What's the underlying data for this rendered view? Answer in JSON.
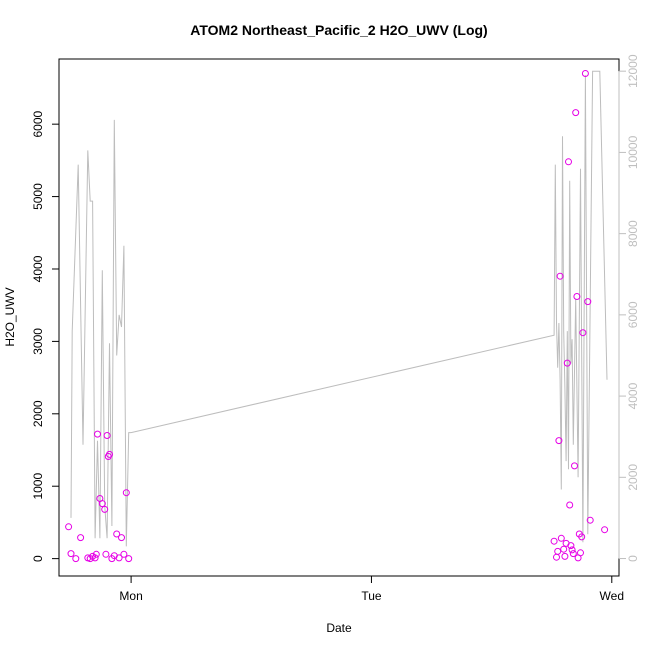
{
  "chart_data": {
    "type": "scatter",
    "title": "ATOM2 Northeast_Pacific_2 H2O_UWV (Log)",
    "xlabel": "Date",
    "ylabel": "H2O_UWV",
    "x_ticks": [
      "Mon",
      "Tue",
      "Wed"
    ],
    "y_ticks": [
      0,
      1000,
      2000,
      3000,
      4000,
      5000,
      6000
    ],
    "y_right_ticks": [
      0,
      2000,
      4000,
      6000,
      8000,
      10000,
      12000
    ],
    "x_range_days": [
      -0.3,
      2.03
    ],
    "ylim": [
      -240,
      6900
    ],
    "y_right_lim": [
      -430,
      12300
    ],
    "colors": {
      "points": "#e600e6",
      "line": "#bdbdbd",
      "right_axis": "#bfbfbf"
    },
    "series": [
      {
        "kind": "points",
        "axis": "left",
        "x": [
          -0.26,
          -0.25,
          -0.23,
          -0.21,
          -0.18,
          -0.17,
          -0.16,
          -0.15,
          -0.145,
          -0.14,
          -0.13,
          -0.12,
          -0.11,
          -0.105,
          -0.1,
          -0.095,
          -0.09,
          -0.08,
          -0.07,
          -0.06,
          -0.05,
          -0.04,
          -0.03,
          -0.02,
          -0.01,
          1.76,
          1.77,
          1.775,
          1.78,
          1.785,
          1.79,
          1.8,
          1.805,
          1.81,
          1.815,
          1.82,
          1.825,
          1.83,
          1.835,
          1.84,
          1.845,
          1.85,
          1.855,
          1.86,
          1.865,
          1.87,
          1.875,
          1.88,
          1.89,
          1.9,
          1.91,
          1.97
        ],
        "y": [
          440,
          70,
          0,
          290,
          10,
          0,
          30,
          10,
          60,
          1720,
          830,
          760,
          680,
          60,
          1700,
          1410,
          1440,
          0,
          40,
          340,
          10,
          290,
          60,
          910,
          0,
          240,
          20,
          100,
          1630,
          3900,
          280,
          130,
          30,
          210,
          2700,
          5480,
          740,
          180,
          120,
          70,
          1280,
          6160,
          3620,
          10,
          340,
          80,
          300,
          3120,
          6700,
          3550,
          530,
          400
        ]
      },
      {
        "kind": "line",
        "axis": "right",
        "x": [
          -0.25,
          -0.245,
          -0.22,
          -0.2,
          -0.18,
          -0.17,
          -0.16,
          -0.15,
          -0.14,
          -0.13,
          -0.12,
          -0.11,
          -0.1,
          -0.09,
          -0.08,
          -0.07,
          -0.06,
          -0.05,
          -0.04,
          -0.03,
          -0.02,
          -0.01,
          0.0,
          1.76,
          1.765,
          1.77,
          1.775,
          1.78,
          1.785,
          1.79,
          1.795,
          1.8,
          1.805,
          1.81,
          1.815,
          1.82,
          1.825,
          1.83,
          1.835,
          1.84,
          1.85,
          1.86,
          1.87,
          1.88,
          1.89,
          1.9,
          1.92,
          1.95,
          1.98
        ],
        "y": [
          1000,
          5600,
          9700,
          2800,
          10050,
          8800,
          8800,
          500,
          2900,
          500,
          7100,
          1300,
          500,
          5300,
          800,
          10800,
          5000,
          6000,
          5700,
          7700,
          300,
          3100,
          3100,
          5500,
          9700,
          5800,
          4700,
          5800,
          4400,
          1700,
          10400,
          5600,
          4200,
          2400,
          5600,
          2200,
          9300,
          4800,
          5400,
          2800,
          6400,
          2000,
          9600,
          400,
          11900,
          600,
          12000,
          12000,
          4400
        ]
      }
    ]
  }
}
